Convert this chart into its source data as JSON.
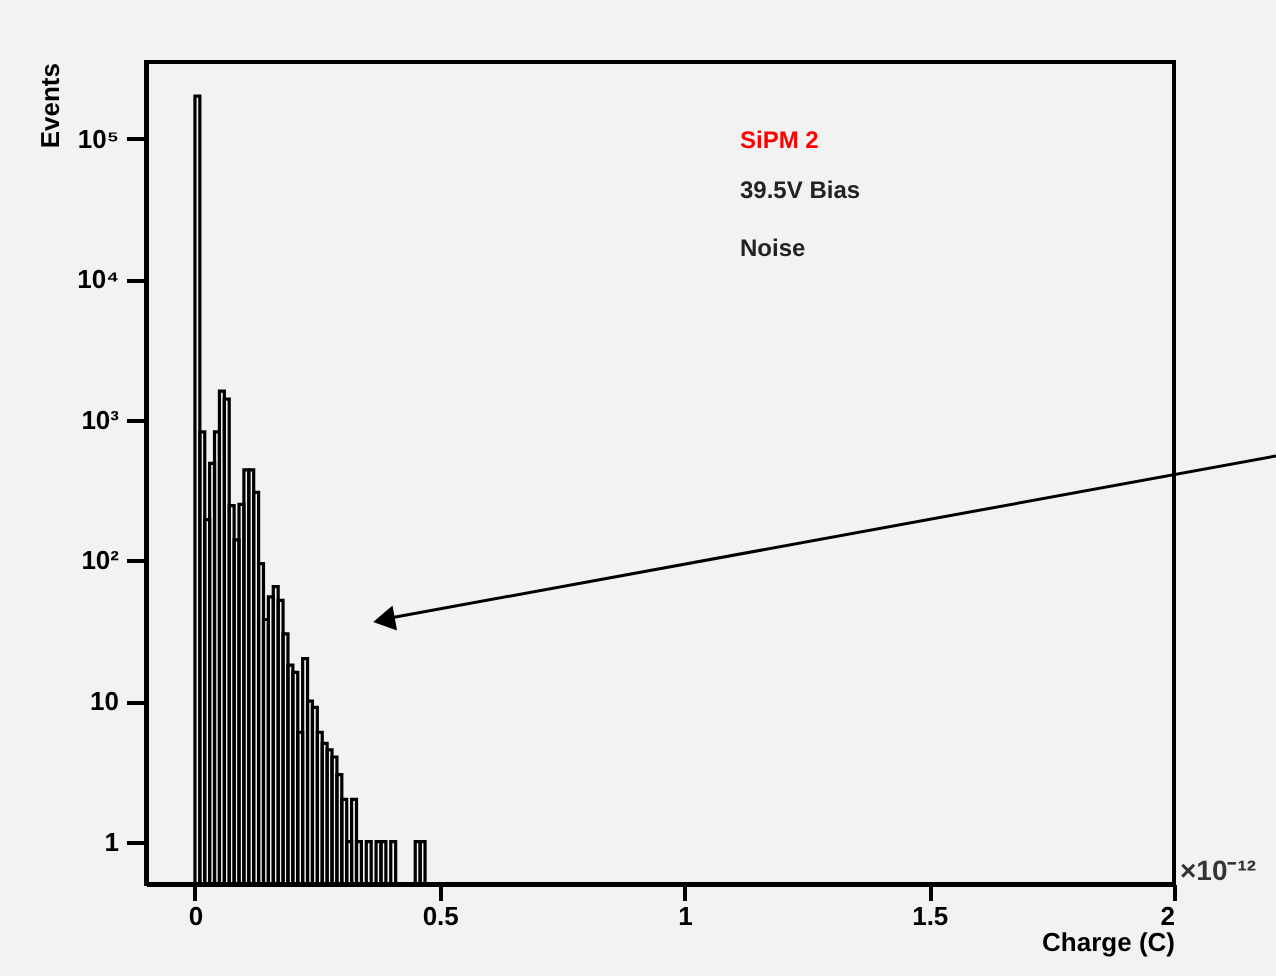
{
  "chart_data": {
    "type": "histogram",
    "xlabel": "Charge (C)",
    "ylabel": "Events",
    "annotations": [
      "SiPM 2",
      "39.5V Bias",
      "Noise",
      "×10⁻¹²"
    ],
    "bins": [
      0,
      0.01,
      0.02,
      0.03,
      0.04,
      0.05,
      0.06,
      0.07,
      0.08,
      0.09,
      0.1,
      0.11,
      0.12,
      0.13,
      0.14,
      0.15,
      0.16,
      0.17,
      0.18,
      0.19,
      0.2,
      0.21,
      0.22,
      0.23,
      0.24,
      0.25,
      0.26,
      0.27,
      0.28,
      0.29,
      0.3,
      0.31,
      0.32,
      0.33,
      0.34,
      0.35,
      0.36,
      0.37,
      0.38,
      0.39,
      0.4,
      0.41,
      0.42,
      0.43,
      0.44,
      0.45,
      0.46,
      0.47
    ],
    "values": [
      200000,
      820,
      195,
      490,
      820,
      1600,
      1400,
      245,
      140,
      250,
      440,
      440,
      305,
      95,
      38,
      55,
      65,
      52,
      30,
      18,
      16,
      6,
      20,
      10,
      9,
      6,
      5,
      4.5,
      4,
      3,
      2,
      1,
      2,
      1,
      null,
      1,
      null,
      1,
      1,
      null,
      1,
      null,
      null,
      null,
      null,
      1,
      1
    ],
    "color": "#000000",
    "xlim": [
      -0.1,
      2
    ],
    "xticks": [
      0,
      0.5,
      1,
      1.5,
      2
    ],
    "ylim": [
      0.5,
      350000
    ],
    "log": true,
    "yticks": [
      1,
      10,
      {
        "value": 100,
        "label": "10²"
      },
      {
        "value": 1000,
        "label": "10³"
      },
      {
        "value": 10000,
        "label": "10⁴"
      },
      {
        "value": 100000,
        "label": "10⁵"
      }
    ],
    "grid": false
  }
}
